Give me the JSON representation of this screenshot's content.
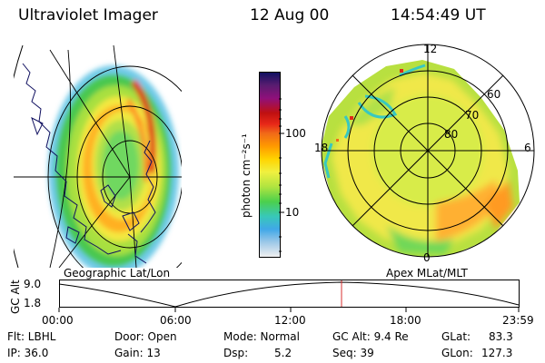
{
  "header": {
    "instrument": "Ultraviolet Imager",
    "date": "12 Aug 00",
    "time": "14:54:49 UT"
  },
  "colorbar": {
    "unit_label": "photon cm⁻²s⁻¹",
    "tick_labels": [
      "100",
      "10"
    ],
    "gradient_colors": [
      "#101060",
      "#5a1c70",
      "#90107a",
      "#c01010",
      "#e82818",
      "#f06a18",
      "#ff9a00",
      "#ffd400",
      "#f0f040",
      "#b0e440",
      "#4cd04c",
      "#38c8b8",
      "#40a8e8",
      "#9cc8e8",
      "#f0f0f0"
    ]
  },
  "left_panel": {
    "label": "Geographic Lat/Lon"
  },
  "right_panel": {
    "label": "Apex MLat/MLT",
    "mlt_labels": {
      "top": "12",
      "left": "18",
      "right": "6",
      "bottom": "0"
    },
    "lat_labels": [
      "60",
      "70",
      "80"
    ]
  },
  "altitude_plot": {
    "ylabel": "GC Alt",
    "ytick_labels": [
      "9.0",
      "1.8"
    ],
    "xtick_labels": [
      "00:00",
      "06:00",
      "12:00",
      "18:00",
      "23:59"
    ],
    "current_marker_color": "#d83030"
  },
  "footer": {
    "row1": {
      "flt": "Flt: LBHL",
      "door": "Door: Open",
      "mode": "Mode:  Normal",
      "gcalt": "GC Alt:  9.4  Re",
      "glat_label": "GLat:",
      "glat_value": "83.3"
    },
    "row2": {
      "ip": "IP: 36.0",
      "gain": "Gain: 13",
      "dsp_label": "Dsp:",
      "dsp_value": "5.2",
      "seq": "Seq: 39",
      "glon_label": "GLon:",
      "glon_value": "127.3"
    }
  }
}
